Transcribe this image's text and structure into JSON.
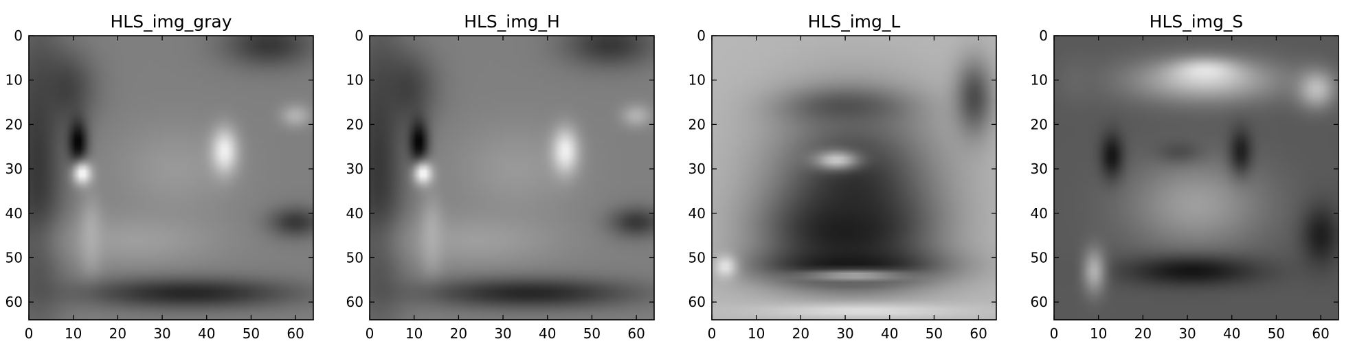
{
  "chart_data": [
    {
      "type": "heatmap",
      "title": "HLS_img_gray",
      "colormap": "gray",
      "image_size": [
        64,
        64
      ],
      "xlim": [
        0,
        64
      ],
      "ylim": [
        64,
        0
      ],
      "xticks": [
        "0",
        "10",
        "20",
        "30",
        "40",
        "50",
        "60"
      ],
      "yticks": [
        "0",
        "10",
        "20",
        "30",
        "40",
        "50",
        "60"
      ],
      "background": 0.5,
      "blobs": [
        {
          "cx": 54,
          "cy": 2,
          "rx": 12,
          "ry": 6,
          "v": 0.22
        },
        {
          "cx": 2,
          "cy": 30,
          "rx": 7,
          "ry": 40,
          "v": 0.22
        },
        {
          "cx": 8,
          "cy": 12,
          "rx": 8,
          "ry": 10,
          "v": 0.25
        },
        {
          "cx": 33,
          "cy": 30,
          "rx": 16,
          "ry": 12,
          "v": 0.6
        },
        {
          "cx": 24,
          "cy": 46,
          "rx": 22,
          "ry": 7,
          "v": 0.62
        },
        {
          "cx": 14,
          "cy": 45,
          "rx": 3,
          "ry": 10,
          "v": 0.68
        },
        {
          "cx": 60,
          "cy": 18,
          "rx": 4,
          "ry": 3,
          "v": 0.7
        },
        {
          "cx": 44,
          "cy": 26,
          "rx": 3.5,
          "ry": 6,
          "v": 0.95
        },
        {
          "cx": 60,
          "cy": 42,
          "rx": 7,
          "ry": 4,
          "v": 0.22
        },
        {
          "cx": 36,
          "cy": 58,
          "rx": 28,
          "ry": 4,
          "v": 0.15
        },
        {
          "cx": 11,
          "cy": 24,
          "rx": 2.5,
          "ry": 6,
          "v": 0.0
        },
        {
          "cx": 12,
          "cy": 31,
          "rx": 2.5,
          "ry": 3,
          "v": 1.0
        }
      ]
    },
    {
      "type": "heatmap",
      "title": "HLS_img_H",
      "colormap": "gray",
      "image_size": [
        64,
        64
      ],
      "xlim": [
        0,
        64
      ],
      "ylim": [
        64,
        0
      ],
      "xticks": [
        "0",
        "10",
        "20",
        "30",
        "40",
        "50",
        "60"
      ],
      "yticks": [
        "0",
        "10",
        "20",
        "30",
        "40",
        "50",
        "60"
      ],
      "background": 0.5,
      "blobs": [
        {
          "cx": 54,
          "cy": 2,
          "rx": 12,
          "ry": 6,
          "v": 0.22
        },
        {
          "cx": 2,
          "cy": 30,
          "rx": 7,
          "ry": 40,
          "v": 0.22
        },
        {
          "cx": 8,
          "cy": 12,
          "rx": 8,
          "ry": 10,
          "v": 0.25
        },
        {
          "cx": 33,
          "cy": 30,
          "rx": 16,
          "ry": 12,
          "v": 0.6
        },
        {
          "cx": 24,
          "cy": 46,
          "rx": 22,
          "ry": 7,
          "v": 0.62
        },
        {
          "cx": 14,
          "cy": 45,
          "rx": 3,
          "ry": 10,
          "v": 0.68
        },
        {
          "cx": 60,
          "cy": 18,
          "rx": 4,
          "ry": 3,
          "v": 0.7
        },
        {
          "cx": 44,
          "cy": 26,
          "rx": 3.5,
          "ry": 6,
          "v": 0.95
        },
        {
          "cx": 60,
          "cy": 42,
          "rx": 7,
          "ry": 4,
          "v": 0.22
        },
        {
          "cx": 36,
          "cy": 58,
          "rx": 28,
          "ry": 4,
          "v": 0.15
        },
        {
          "cx": 11,
          "cy": 24,
          "rx": 2.5,
          "ry": 6,
          "v": 0.0
        },
        {
          "cx": 12,
          "cy": 31,
          "rx": 2.5,
          "ry": 3,
          "v": 1.0
        }
      ]
    },
    {
      "type": "heatmap",
      "title": "HLS_img_L",
      "colormap": "gray",
      "image_size": [
        64,
        64
      ],
      "xlim": [
        0,
        64
      ],
      "ylim": [
        64,
        0
      ],
      "xticks": [
        "0",
        "10",
        "20",
        "30",
        "40",
        "50",
        "60"
      ],
      "yticks": [
        "0",
        "10",
        "20",
        "30",
        "40",
        "50",
        "60"
      ],
      "background": 0.72,
      "blobs": [
        {
          "cx": 32,
          "cy": 34,
          "rx": 22,
          "ry": 22,
          "v": 0.2
        },
        {
          "cx": 30,
          "cy": 16,
          "rx": 16,
          "ry": 5,
          "v": 0.32
        },
        {
          "cx": 30,
          "cy": 44,
          "rx": 20,
          "ry": 10,
          "v": 0.12
        },
        {
          "cx": 31,
          "cy": 52,
          "rx": 24,
          "ry": 5,
          "v": 0.08
        },
        {
          "cx": 28,
          "cy": 28,
          "rx": 6,
          "ry": 2.5,
          "v": 0.8
        },
        {
          "cx": 32,
          "cy": 54,
          "rx": 15,
          "ry": 1.5,
          "v": 0.7
        },
        {
          "cx": 59,
          "cy": 14,
          "rx": 5,
          "ry": 10,
          "v": 0.3
        },
        {
          "cx": 3,
          "cy": 52,
          "rx": 3,
          "ry": 3,
          "v": 0.9
        },
        {
          "cx": 34,
          "cy": 62,
          "rx": 28,
          "ry": 2,
          "v": 0.88
        }
      ]
    },
    {
      "type": "heatmap",
      "title": "HLS_img_S",
      "colormap": "gray",
      "image_size": [
        64,
        64
      ],
      "xlim": [
        0,
        64
      ],
      "ylim": [
        64,
        0
      ],
      "xticks": [
        "0",
        "10",
        "20",
        "30",
        "40",
        "50",
        "60"
      ],
      "yticks": [
        "0",
        "10",
        "20",
        "30",
        "40",
        "50",
        "60"
      ],
      "background": 0.35,
      "blobs": [
        {
          "cx": 34,
          "cy": 10,
          "rx": 20,
          "ry": 6,
          "v": 0.75
        },
        {
          "cx": 34,
          "cy": 8,
          "rx": 8,
          "ry": 3,
          "v": 0.9
        },
        {
          "cx": 32,
          "cy": 38,
          "rx": 18,
          "ry": 12,
          "v": 0.62
        },
        {
          "cx": 28,
          "cy": 26,
          "rx": 6,
          "ry": 3,
          "v": 0.3
        },
        {
          "cx": 13,
          "cy": 27,
          "rx": 3,
          "ry": 6,
          "v": 0.08
        },
        {
          "cx": 42,
          "cy": 26,
          "rx": 3,
          "ry": 6,
          "v": 0.12
        },
        {
          "cx": 31,
          "cy": 53,
          "rx": 18,
          "ry": 4,
          "v": 0.08
        },
        {
          "cx": 9,
          "cy": 53,
          "rx": 3,
          "ry": 6,
          "v": 0.7
        },
        {
          "cx": 59,
          "cy": 12,
          "rx": 5,
          "ry": 5,
          "v": 0.75
        },
        {
          "cx": 60,
          "cy": 45,
          "rx": 5,
          "ry": 8,
          "v": 0.12
        },
        {
          "cx": 5,
          "cy": 10,
          "rx": 5,
          "ry": 6,
          "v": 0.4
        }
      ]
    }
  ]
}
